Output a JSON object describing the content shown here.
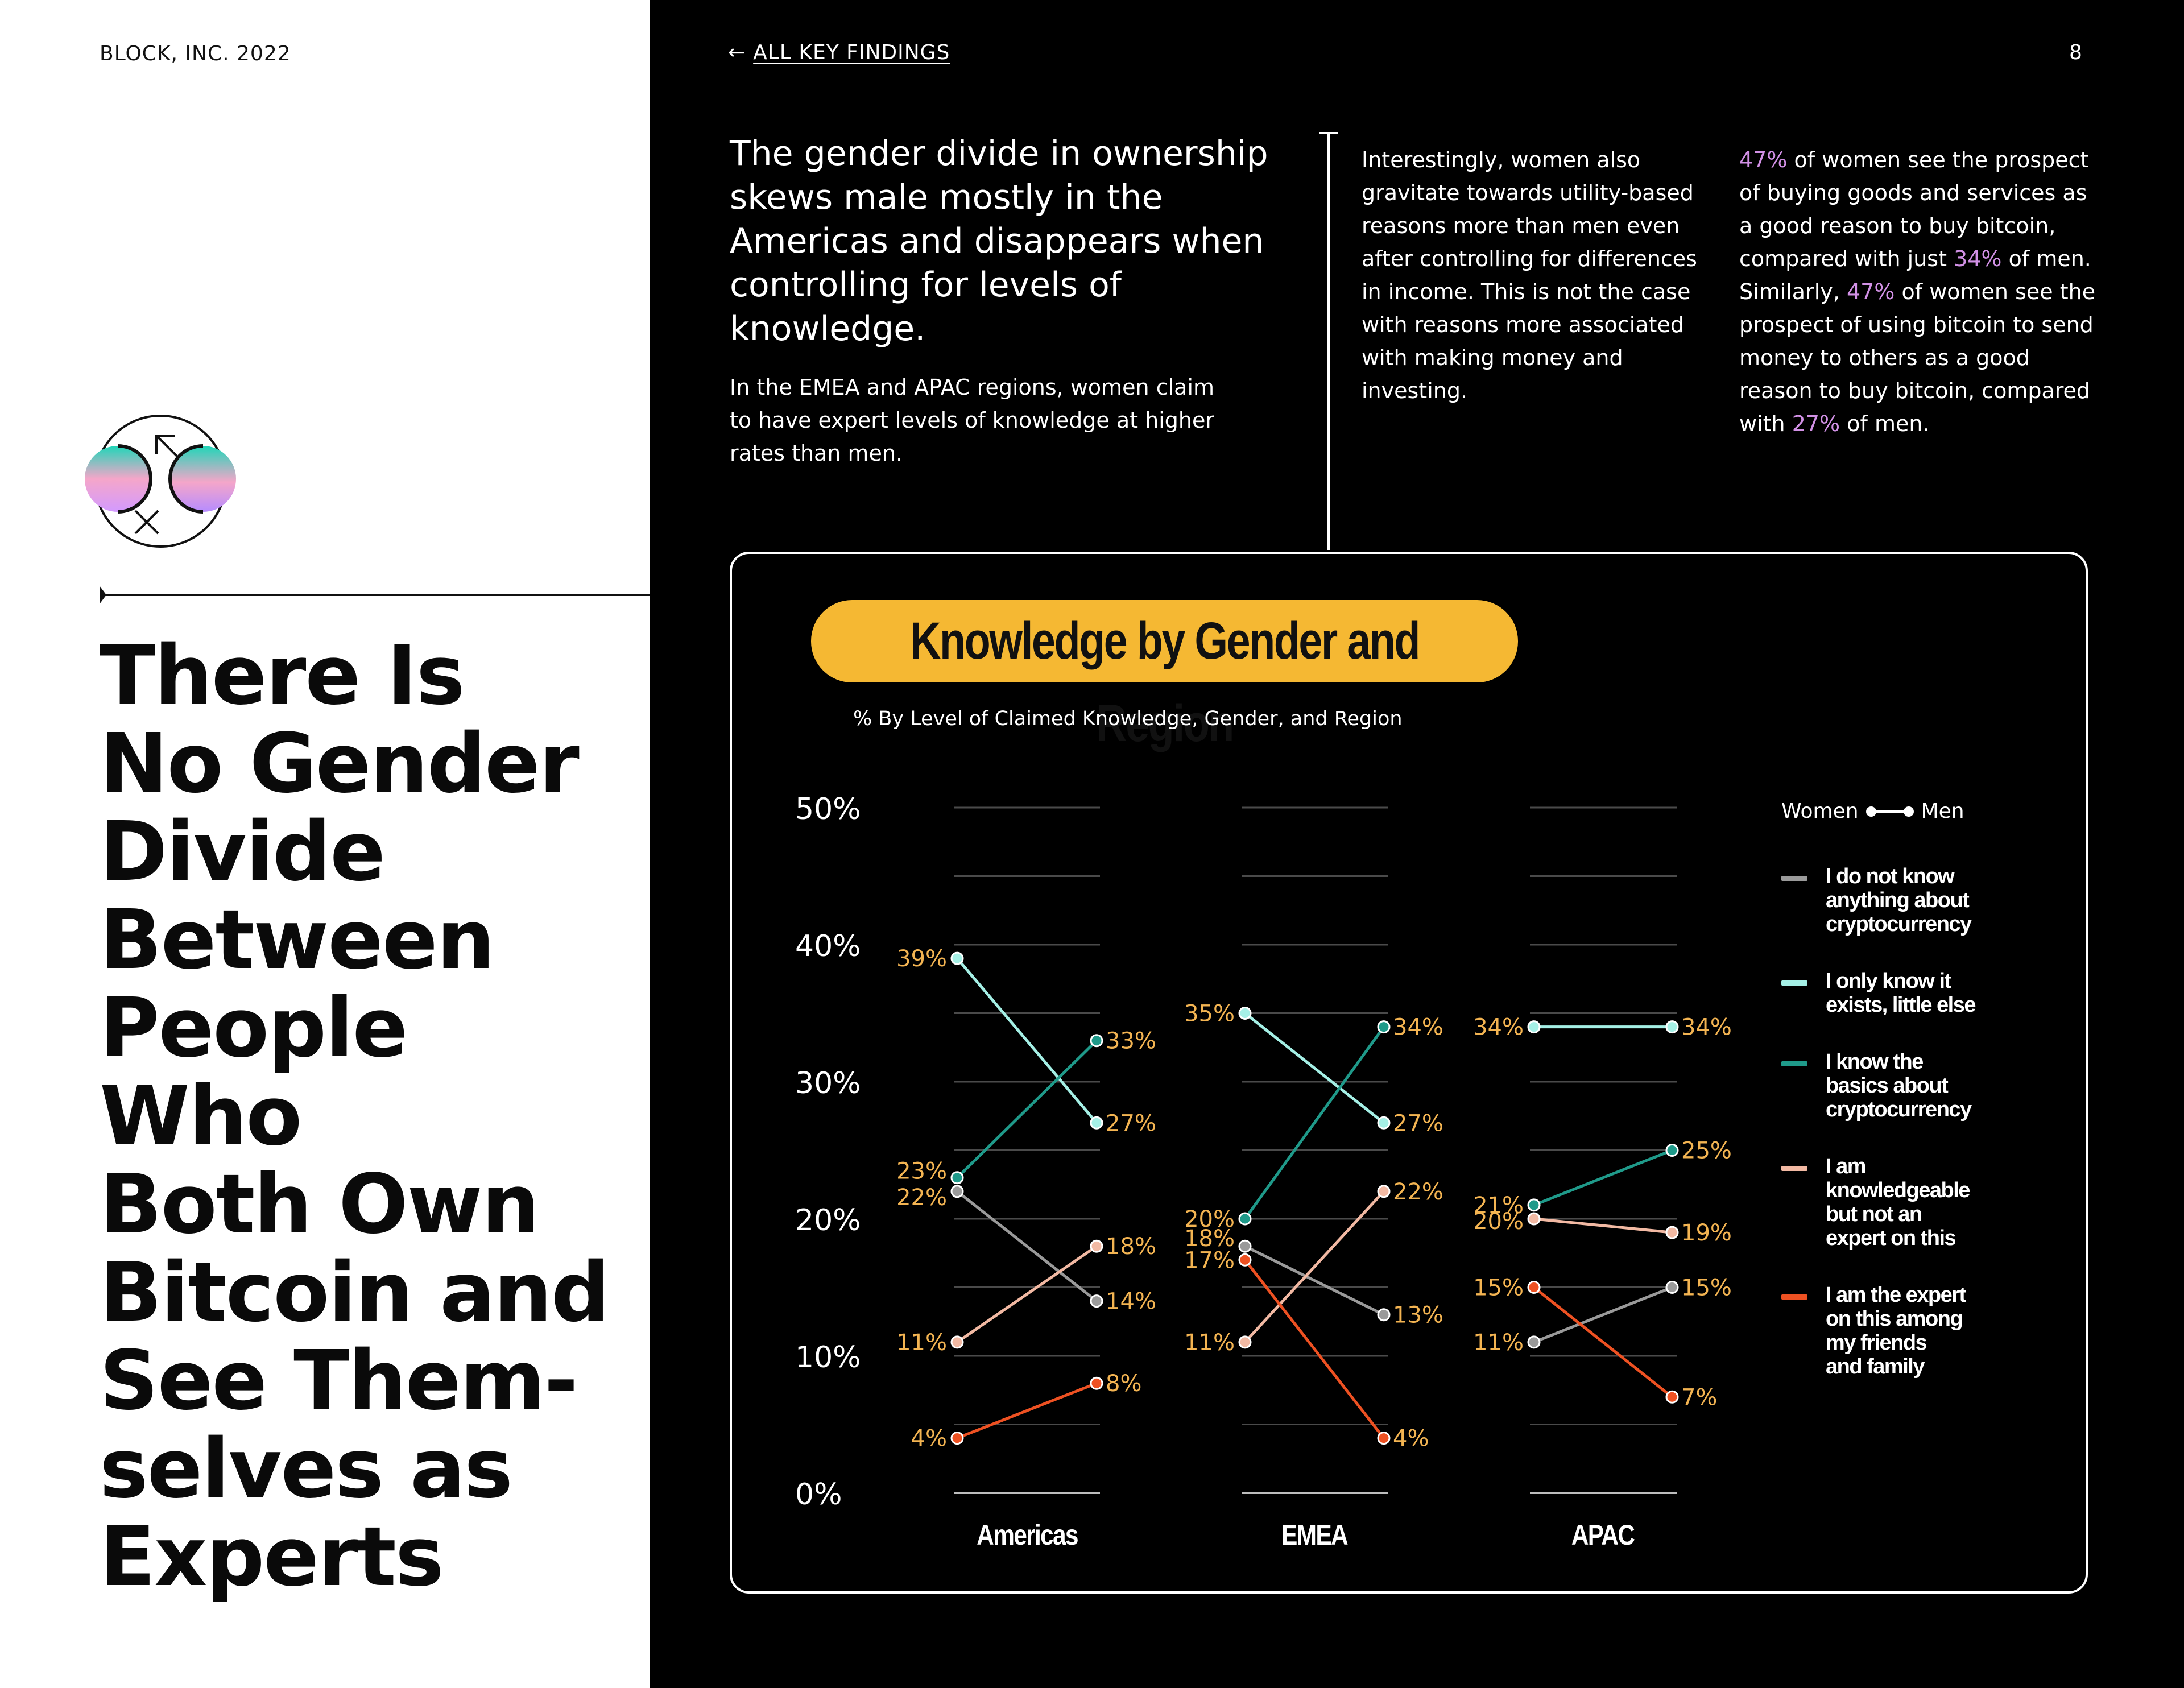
{
  "left": {
    "brand": "BLOCK, INC. 2022",
    "headline": "There Is\nNo Gender\nDivide\nBetween\nPeople\nWho\nBoth Own\nBitcoin and\nSee Them-\nselves as\nExperts"
  },
  "nav": {
    "back_label": "ALL KEY FINDINGS",
    "page_number": "8"
  },
  "intro": {
    "lead": "The gender divide in ownership skews male mostly in the Americas and disappears when controlling for levels of knowledge.",
    "sub": "In the EMEA and APAC regions, women claim to have expert levels of knowledge at higher rates than men.",
    "col2": "Interestingly, women also gravitate towards utility-based reasons more than men even after controlling for differences in income. This is not the case with reasons more associated with making money and investing.",
    "col3": {
      "p1": "47%",
      "t1": " of women see the prospect of buying goods and services as a good reason to buy bitcoin, compared with just ",
      "p2": "34%",
      "t2": " of men. Similarly, ",
      "p3": "47%",
      "t3": " of women see the prospect of using bitcoin to send money to others as a good reason to buy bitcoin, compared with ",
      "p4": "27%",
      "t4": " of men."
    }
  },
  "chart_data": {
    "type": "line",
    "title": "Knowledge by Gender and Region",
    "subtitle": "% By Level of Claimed Knowledge, Gender, and Region",
    "y_ticks": [
      "50%",
      "40%",
      "30%",
      "20%",
      "10%",
      "0%"
    ],
    "ylim": [
      0,
      50
    ],
    "regions": [
      "Americas",
      "EMEA",
      "APAC"
    ],
    "legend_header": {
      "women": "Women",
      "men": "Men"
    },
    "series": [
      {
        "name": "I do not know anything about cryptocurrency",
        "color": "#9a9a9a",
        "women": [
          22,
          18,
          11
        ],
        "men": [
          14,
          13,
          15
        ]
      },
      {
        "name": "I only know it exists, little else",
        "color": "#a5f0e6",
        "women": [
          39,
          35,
          34
        ],
        "men": [
          27,
          27,
          34
        ]
      },
      {
        "name": "I know the basics about cryptocurrency",
        "color": "#1f9a8a",
        "women": [
          23,
          20,
          21
        ],
        "men": [
          33,
          34,
          25
        ]
      },
      {
        "name": "I am knowledgeable but not an expert on this",
        "color": "#f2b9a3",
        "women": [
          11,
          11,
          20
        ],
        "men": [
          18,
          22,
          19
        ]
      },
      {
        "name": "I am the expert on this among my friends and family",
        "color": "#ee5122",
        "women": [
          4,
          17,
          15
        ],
        "men": [
          8,
          4,
          7
        ]
      }
    ]
  }
}
